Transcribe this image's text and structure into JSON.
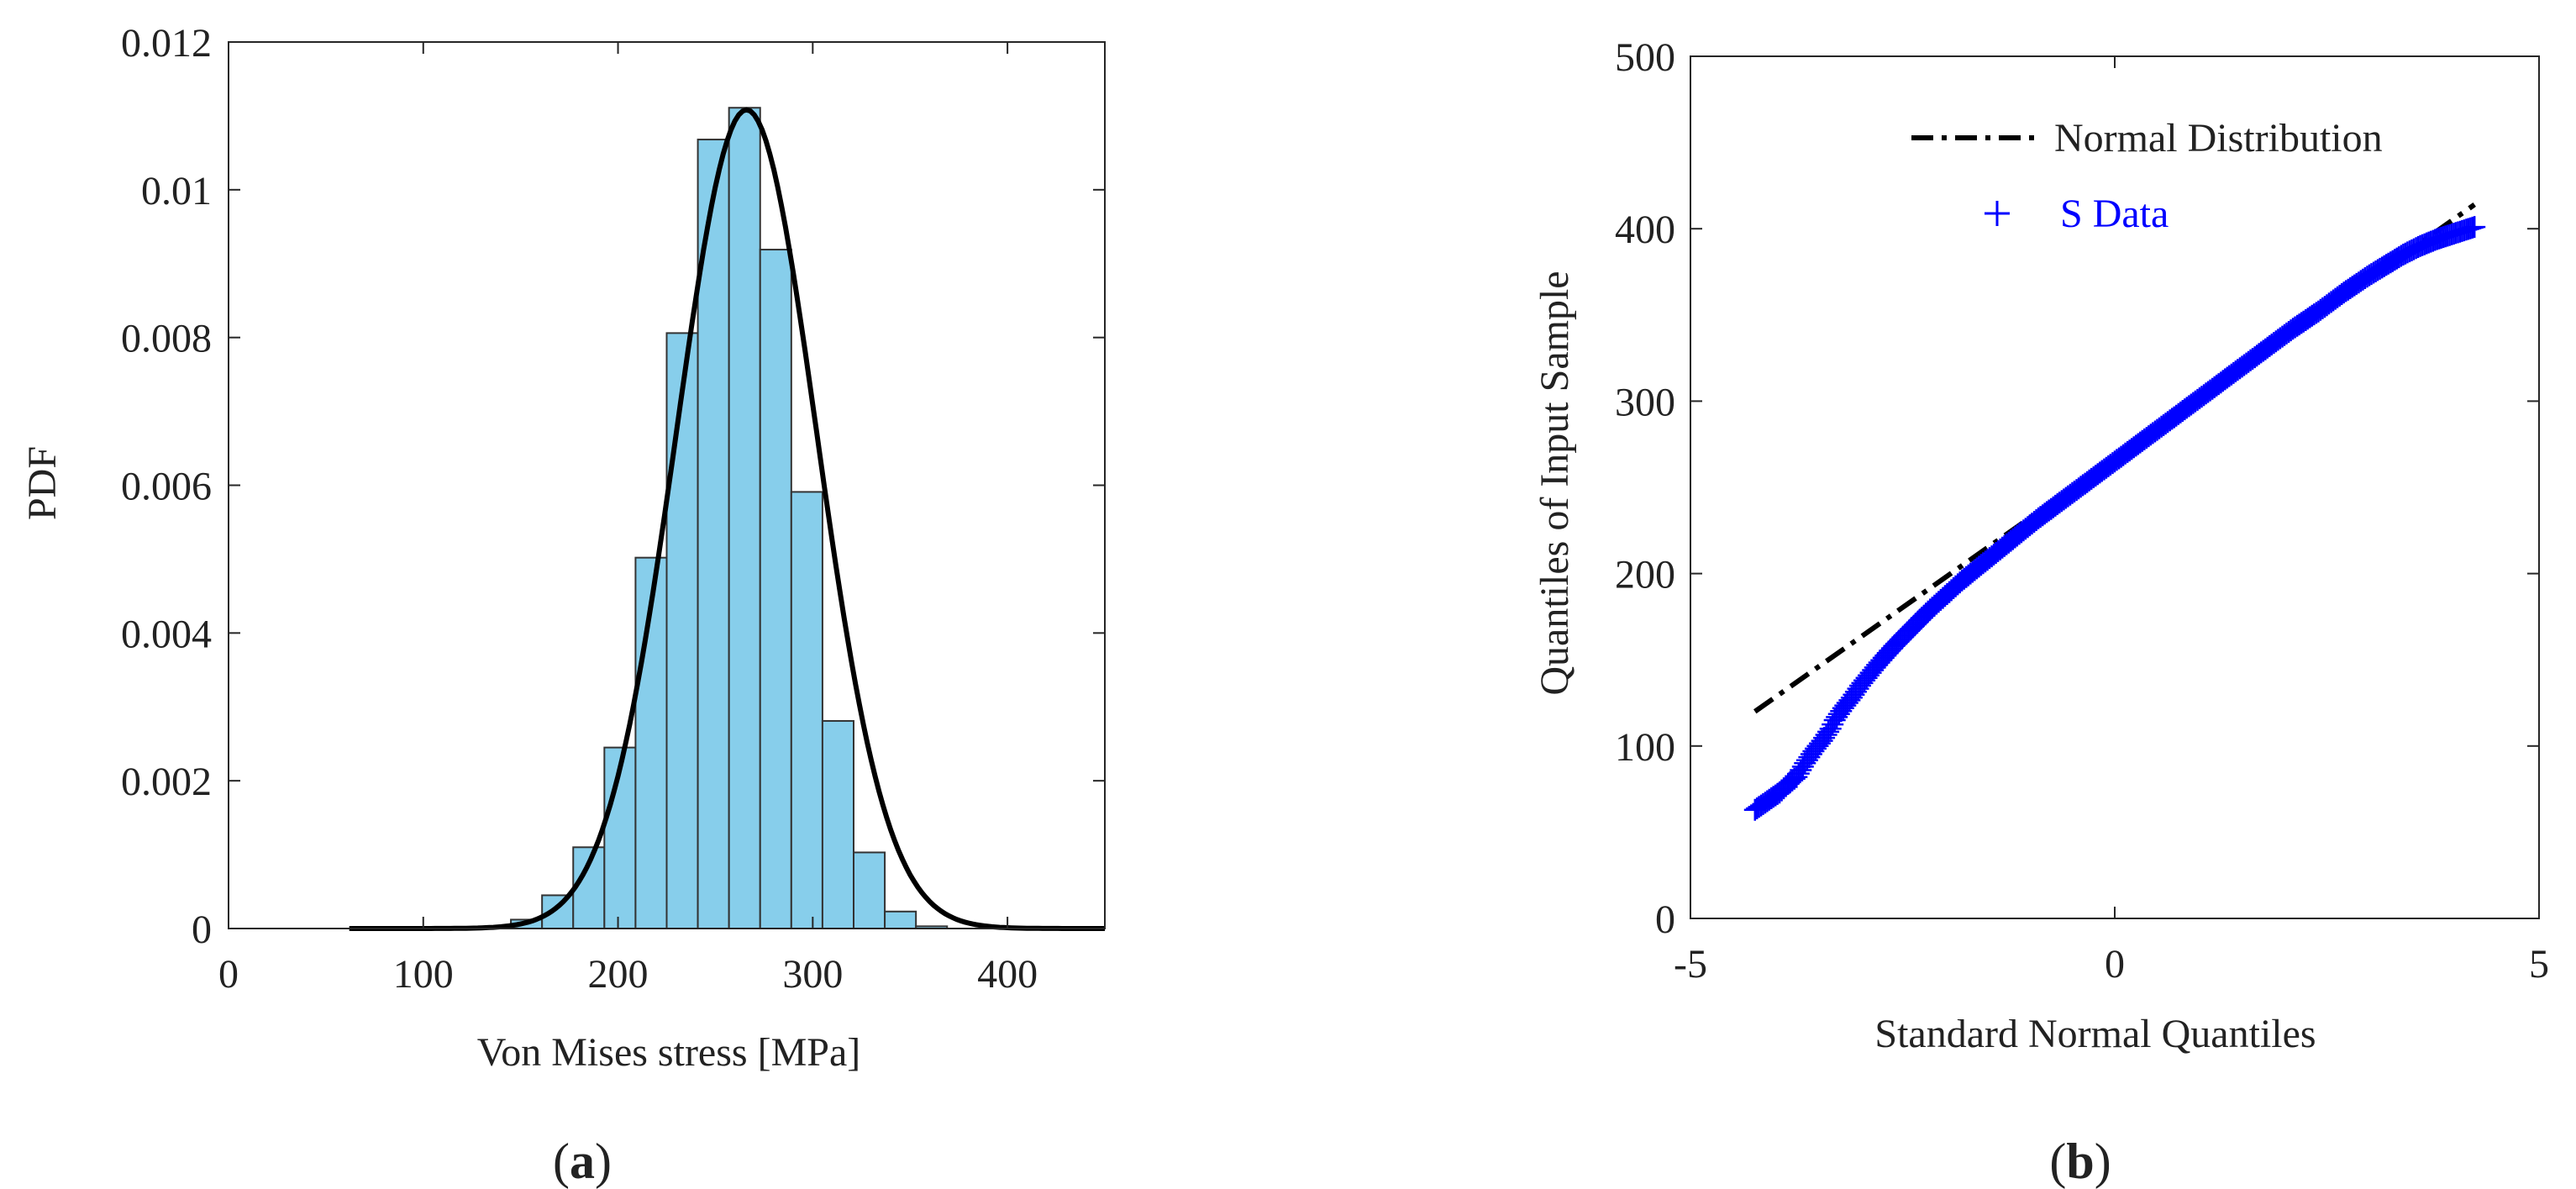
{
  "figure": {
    "captions": {
      "a": "a",
      "b": "b"
    },
    "caption_parens": {
      "open": "(",
      "close": ")"
    }
  },
  "chart_data": [
    {
      "id": "a",
      "type": "bar",
      "subtype": "histogram-with-fitted-pdf",
      "title": "",
      "xlabel": "Von Mises stress [MPa]",
      "ylabel": "PDF",
      "xlim": [
        0,
        450
      ],
      "ylim": [
        0,
        0.012
      ],
      "xticks": [
        0,
        100,
        200,
        300,
        400
      ],
      "yticks": [
        0,
        0.002,
        0.004,
        0.006,
        0.008,
        0.01,
        0.012
      ],
      "xtick_labels": [
        "0",
        "100",
        "200",
        "300",
        "400"
      ],
      "ytick_labels": [
        "0",
        "0.002",
        "0.004",
        "0.006",
        "0.008",
        "0.01",
        "0.012"
      ],
      "bar_color": "#87CEEB",
      "bar_edge_color": "#333333",
      "bin_edges": [
        145,
        161,
        177,
        193,
        209,
        225,
        241,
        257,
        273,
        289,
        305,
        321,
        337,
        353,
        369
      ],
      "values": [
        0.00012,
        0.00045,
        0.0011,
        0.00245,
        0.00502,
        0.00806,
        0.01068,
        0.01111,
        0.00919,
        0.00591,
        0.00281,
        0.00103,
        0.00023,
        3e-05
      ],
      "fit_line": {
        "type": "normal-pdf",
        "mean": 266,
        "sd": 36,
        "x_range": [
          62,
          450
        ],
        "color": "#000000"
      }
    },
    {
      "id": "b",
      "type": "scatter",
      "subtype": "normal-qq-plot",
      "title": "",
      "xlabel": "Standard Normal Quantiles",
      "ylabel": "Quantiles of Input Sample",
      "xlim": [
        -5,
        5
      ],
      "ylim": [
        0,
        500
      ],
      "xticks": [
        -5,
        0,
        5
      ],
      "yticks": [
        0,
        100,
        200,
        300,
        400,
        500
      ],
      "xtick_labels": [
        "-5",
        "0",
        "5"
      ],
      "ytick_labels": [
        "0",
        "100",
        "200",
        "300",
        "400",
        "500"
      ],
      "legend": [
        {
          "label": "Normal Distribution",
          "style": "dash-dot",
          "color": "#000000"
        },
        {
          "label": "S Data",
          "style": "plus-marker",
          "color": "#0000FF"
        }
      ],
      "reference_line": {
        "x": [
          -4.24,
          4.24
        ],
        "y": [
          120,
          414
        ],
        "color": "#000000"
      },
      "series": [
        {
          "name": "S Data",
          "x": [
            -4.24,
            -3.95,
            -3.85,
            -3.75,
            -3.65,
            -3.55,
            -3.45,
            -3.35,
            -3.3,
            -3.2,
            -3.1,
            -3.0,
            -2.8,
            -2.6,
            -2.4,
            -2.2,
            -2.0,
            -1.8,
            -1.5,
            -1.2,
            -0.9,
            -0.6,
            -0.3,
            0.0,
            0.3,
            0.6,
            0.9,
            1.2,
            1.5,
            1.8,
            2.1,
            2.4,
            2.7,
            3.0,
            3.2,
            3.4,
            3.6,
            3.8,
            4.24
          ],
          "y": [
            63,
            73,
            78,
            82,
            90,
            97,
            103,
            110,
            115,
            122,
            128,
            135,
            147,
            158,
            168,
            178,
            187,
            196,
            208,
            220,
            232,
            243,
            254,
            265,
            276,
            287,
            298,
            309,
            320,
            331,
            342,
            352,
            363,
            373,
            379,
            385,
            390,
            394,
            401
          ],
          "color": "#0000FF"
        }
      ]
    }
  ]
}
